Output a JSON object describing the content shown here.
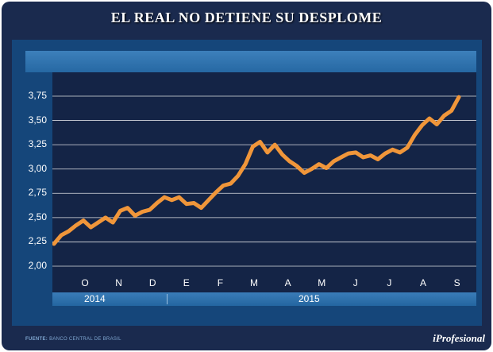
{
  "header": {
    "title": "EL REAL NO DETIENE SU DESPLOME"
  },
  "footer": {
    "source_label": "FUENTE:",
    "source_text": "BANCO CENTRAL DE BRASIL",
    "brand": "iProfesional"
  },
  "colors": {
    "background": "#1a2a4e",
    "panel": "#15467a",
    "plot": "#142446",
    "line": "#f0963a",
    "grid": "#ffffff"
  },
  "chart_data": {
    "type": "line",
    "title": "EL REAL NO DETIENE SU DESPLOME",
    "xlabel": "",
    "ylabel": "",
    "ylim": [
      2.0,
      3.75
    ],
    "yticks": [
      "2,00",
      "2,25",
      "2,50",
      "2,75",
      "3,00",
      "3,25",
      "3,50",
      "3,75"
    ],
    "months": [
      "O",
      "N",
      "D",
      "E",
      "F",
      "M",
      "A",
      "M",
      "J",
      "J",
      "A",
      "S"
    ],
    "years": [
      "2014",
      "2015"
    ],
    "grid": true,
    "series": [
      {
        "values": [
          2.23,
          2.32,
          2.36,
          2.42,
          2.47,
          2.4,
          2.45,
          2.5,
          2.45,
          2.57,
          2.6,
          2.52,
          2.56,
          2.58,
          2.65,
          2.71,
          2.68,
          2.71,
          2.64,
          2.65,
          2.6,
          2.68,
          2.76,
          2.83,
          2.85,
          2.93,
          3.05,
          3.23,
          3.28,
          3.17,
          3.25,
          3.15,
          3.08,
          3.03,
          2.96,
          3.0,
          3.05,
          3.01,
          3.08,
          3.12,
          3.16,
          3.17,
          3.12,
          3.14,
          3.1,
          3.16,
          3.2,
          3.17,
          3.22,
          3.35,
          3.45,
          3.52,
          3.46,
          3.55,
          3.6,
          3.74
        ]
      }
    ]
  }
}
